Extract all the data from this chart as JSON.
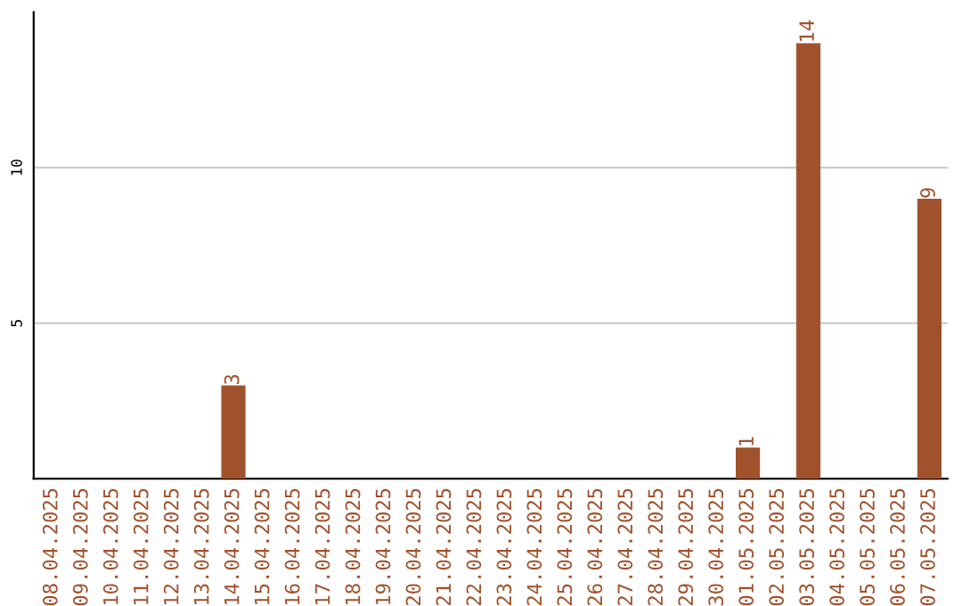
{
  "chart_data": {
    "type": "bar",
    "categories": [
      "08.04.2025",
      "09.04.2025",
      "10.04.2025",
      "11.04.2025",
      "12.04.2025",
      "13.04.2025",
      "14.04.2025",
      "15.04.2025",
      "16.04.2025",
      "17.04.2025",
      "18.04.2025",
      "19.04.2025",
      "20.04.2025",
      "21.04.2025",
      "22.04.2025",
      "23.04.2025",
      "24.04.2025",
      "25.04.2025",
      "26.04.2025",
      "27.04.2025",
      "28.04.2025",
      "29.04.2025",
      "30.04.2025",
      "01.05.2025",
      "02.05.2025",
      "03.05.2025",
      "04.05.2025",
      "05.05.2025",
      "06.05.2025",
      "07.05.2025"
    ],
    "values": [
      0,
      0,
      0,
      0,
      0,
      0,
      3,
      0,
      0,
      0,
      0,
      0,
      0,
      0,
      0,
      0,
      0,
      0,
      0,
      0,
      0,
      0,
      0,
      1,
      0,
      14,
      0,
      0,
      0,
      9
    ],
    "value_labels": [
      null,
      null,
      null,
      null,
      null,
      null,
      "3",
      null,
      null,
      null,
      null,
      null,
      null,
      null,
      null,
      null,
      null,
      null,
      null,
      null,
      null,
      null,
      null,
      "1",
      null,
      "14",
      null,
      null,
      null,
      "9"
    ],
    "color": "#a0522d",
    "ylim": [
      0,
      15
    ],
    "yticks": [
      5,
      10
    ],
    "grid": "y"
  }
}
